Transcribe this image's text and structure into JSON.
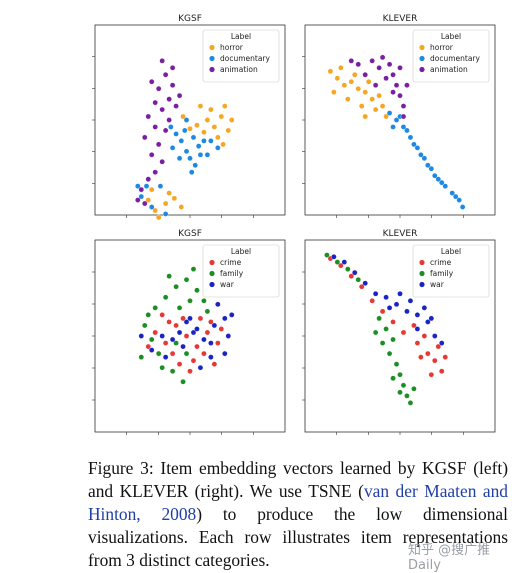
{
  "chart_data": [
    {
      "type": "scatter",
      "title": "KGSF",
      "legend_title": "Label",
      "legend_position": "top-right",
      "series": [
        {
          "name": "horror",
          "color": "#f5a623",
          "points": [
            [
              0.6,
              0.5
            ],
            [
              0.64,
              0.46
            ],
            [
              0.68,
              0.52
            ],
            [
              0.7,
              0.58
            ],
            [
              0.72,
              0.44
            ],
            [
              0.66,
              0.4
            ],
            [
              0.62,
              0.56
            ],
            [
              0.58,
              0.43
            ],
            [
              0.74,
              0.5
            ],
            [
              0.69,
              0.36
            ],
            [
              0.54,
              0.47
            ],
            [
              0.56,
              0.58
            ],
            [
              0.5,
              0.45
            ],
            [
              0.46,
              0.52
            ],
            [
              0.3,
              -0.02
            ],
            [
              0.28,
              0.1
            ],
            [
              0.26,
              0.04
            ],
            [
              0.36,
              0.02
            ],
            [
              0.38,
              0.08
            ],
            [
              0.45,
              0.0
            ],
            [
              0.32,
              -0.06
            ],
            [
              0.41,
              0.05
            ]
          ]
        },
        {
          "name": "documentary",
          "color": "#1e88e5",
          "points": [
            [
              0.45,
              0.38
            ],
            [
              0.48,
              0.32
            ],
            [
              0.52,
              0.4
            ],
            [
              0.55,
              0.35
            ],
            [
              0.5,
              0.28
            ],
            [
              0.42,
              0.42
            ],
            [
              0.58,
              0.38
            ],
            [
              0.47,
              0.44
            ],
            [
              0.53,
              0.24
            ],
            [
              0.4,
              0.34
            ],
            [
              0.56,
              0.3
            ],
            [
              0.44,
              0.28
            ],
            [
              0.6,
              0.3
            ],
            [
              0.62,
              0.38
            ],
            [
              0.22,
              0.06
            ],
            [
              0.25,
              0.12
            ],
            [
              0.28,
              0.0
            ],
            [
              0.33,
              0.12
            ],
            [
              0.36,
              -0.04
            ],
            [
              0.2,
              0.12
            ],
            [
              0.48,
              0.5
            ],
            [
              0.51,
              0.2
            ],
            [
              0.39,
              0.46
            ],
            [
              0.66,
              0.34
            ]
          ]
        },
        {
          "name": "animation",
          "color": "#7b1fa2",
          "points": [
            [
              0.28,
              0.72
            ],
            [
              0.32,
              0.68
            ],
            [
              0.36,
              0.76
            ],
            [
              0.4,
              0.7
            ],
            [
              0.3,
              0.6
            ],
            [
              0.34,
              0.56
            ],
            [
              0.38,
              0.62
            ],
            [
              0.42,
              0.58
            ],
            [
              0.3,
              0.46
            ],
            [
              0.26,
              0.52
            ],
            [
              0.36,
              0.44
            ],
            [
              0.32,
              0.36
            ],
            [
              0.28,
              0.3
            ],
            [
              0.24,
              0.4
            ],
            [
              0.4,
              0.8
            ],
            [
              0.34,
              0.84
            ],
            [
              0.44,
              0.64
            ],
            [
              0.38,
              0.5
            ],
            [
              0.22,
              0.1
            ],
            [
              0.26,
              0.16
            ],
            [
              0.24,
              0.02
            ],
            [
              0.3,
              0.2
            ],
            [
              0.34,
              0.26
            ],
            [
              0.2,
              0.04
            ]
          ]
        }
      ]
    },
    {
      "type": "scatter",
      "title": "KLEVER",
      "legend_title": "Label",
      "legend_position": "top-right",
      "series": [
        {
          "name": "horror",
          "color": "#f5a623",
          "points": [
            [
              0.1,
              0.78
            ],
            [
              0.14,
              0.74
            ],
            [
              0.18,
              0.7
            ],
            [
              0.22,
              0.72
            ],
            [
              0.26,
              0.68
            ],
            [
              0.3,
              0.66
            ],
            [
              0.34,
              0.62
            ],
            [
              0.38,
              0.64
            ],
            [
              0.2,
              0.62
            ],
            [
              0.28,
              0.58
            ],
            [
              0.36,
              0.56
            ],
            [
              0.24,
              0.76
            ],
            [
              0.32,
              0.72
            ],
            [
              0.4,
              0.58
            ],
            [
              0.16,
              0.8
            ],
            [
              0.12,
              0.66
            ],
            [
              0.42,
              0.52
            ],
            [
              0.3,
              0.52
            ]
          ]
        },
        {
          "name": "documentary",
          "color": "#1e88e5",
          "points": [
            [
              0.44,
              0.54
            ],
            [
              0.48,
              0.5
            ],
            [
              0.52,
              0.46
            ],
            [
              0.56,
              0.4
            ],
            [
              0.6,
              0.34
            ],
            [
              0.64,
              0.28
            ],
            [
              0.68,
              0.22
            ],
            [
              0.72,
              0.16
            ],
            [
              0.76,
              0.12
            ],
            [
              0.8,
              0.08
            ],
            [
              0.84,
              0.04
            ],
            [
              0.86,
              0.0
            ],
            [
              0.62,
              0.3
            ],
            [
              0.7,
              0.18
            ],
            [
              0.58,
              0.36
            ],
            [
              0.5,
              0.52
            ],
            [
              0.66,
              0.24
            ],
            [
              0.74,
              0.14
            ],
            [
              0.82,
              0.06
            ],
            [
              0.46,
              0.46
            ],
            [
              0.54,
              0.44
            ]
          ]
        },
        {
          "name": "animation",
          "color": "#7b1fa2",
          "points": [
            [
              0.4,
              0.86
            ],
            [
              0.44,
              0.82
            ],
            [
              0.46,
              0.76
            ],
            [
              0.48,
              0.7
            ],
            [
              0.5,
              0.64
            ],
            [
              0.52,
              0.58
            ],
            [
              0.42,
              0.74
            ],
            [
              0.38,
              0.8
            ],
            [
              0.5,
              0.8
            ],
            [
              0.46,
              0.66
            ],
            [
              0.36,
              0.7
            ],
            [
              0.3,
              0.76
            ],
            [
              0.26,
              0.82
            ],
            [
              0.22,
              0.84
            ],
            [
              0.54,
              0.7
            ],
            [
              0.52,
              0.52
            ],
            [
              0.34,
              0.84
            ]
          ]
        }
      ]
    },
    {
      "type": "scatter",
      "title": "KGSF",
      "legend_title": "Label",
      "legend_position": "top-right",
      "series": [
        {
          "name": "crime",
          "color": "#e53935",
          "points": [
            [
              0.3,
              0.52
            ],
            [
              0.36,
              0.46
            ],
            [
              0.42,
              0.56
            ],
            [
              0.48,
              0.5
            ],
            [
              0.54,
              0.44
            ],
            [
              0.6,
              0.52
            ],
            [
              0.4,
              0.4
            ],
            [
              0.52,
              0.36
            ],
            [
              0.58,
              0.4
            ],
            [
              0.66,
              0.46
            ],
            [
              0.46,
              0.6
            ],
            [
              0.34,
              0.62
            ],
            [
              0.62,
              0.58
            ],
            [
              0.5,
              0.3
            ],
            [
              0.44,
              0.34
            ],
            [
              0.56,
              0.6
            ],
            [
              0.38,
              0.58
            ],
            [
              0.68,
              0.54
            ],
            [
              0.26,
              0.44
            ],
            [
              0.64,
              0.34
            ]
          ]
        },
        {
          "name": "family",
          "color": "#1b8e24",
          "points": [
            [
              0.24,
              0.56
            ],
            [
              0.3,
              0.66
            ],
            [
              0.36,
              0.72
            ],
            [
              0.42,
              0.78
            ],
            [
              0.48,
              0.82
            ],
            [
              0.54,
              0.76
            ],
            [
              0.32,
              0.4
            ],
            [
              0.28,
              0.48
            ],
            [
              0.4,
              0.3
            ],
            [
              0.46,
              0.24
            ],
            [
              0.22,
              0.38
            ],
            [
              0.5,
              0.7
            ],
            [
              0.38,
              0.84
            ],
            [
              0.44,
              0.66
            ],
            [
              0.58,
              0.7
            ],
            [
              0.52,
              0.88
            ],
            [
              0.34,
              0.32
            ],
            [
              0.26,
              0.62
            ],
            [
              0.42,
              0.46
            ],
            [
              0.6,
              0.64
            ],
            [
              0.48,
              0.4
            ]
          ]
        },
        {
          "name": "war",
          "color": "#1a23c4",
          "points": [
            [
              0.22,
              0.5
            ],
            [
              0.28,
              0.42
            ],
            [
              0.34,
              0.5
            ],
            [
              0.4,
              0.48
            ],
            [
              0.46,
              0.44
            ],
            [
              0.52,
              0.52
            ],
            [
              0.58,
              0.48
            ],
            [
              0.64,
              0.56
            ],
            [
              0.7,
              0.6
            ],
            [
              0.66,
              0.68
            ],
            [
              0.6,
              0.76
            ],
            [
              0.72,
              0.5
            ],
            [
              0.56,
              0.32
            ],
            [
              0.62,
              0.38
            ],
            [
              0.5,
              0.6
            ],
            [
              0.44,
              0.52
            ],
            [
              0.7,
              0.4
            ],
            [
              0.36,
              0.38
            ],
            [
              0.74,
              0.62
            ],
            [
              0.54,
              0.54
            ],
            [
              0.62,
              0.46
            ],
            [
              0.48,
              0.58
            ]
          ]
        }
      ]
    },
    {
      "type": "scatter",
      "title": "KLEVER",
      "legend_title": "Label",
      "legend_position": "top-right",
      "series": [
        {
          "name": "crime",
          "color": "#e53935",
          "points": [
            [
              0.1,
              0.94
            ],
            [
              0.16,
              0.9
            ],
            [
              0.22,
              0.84
            ],
            [
              0.28,
              0.78
            ],
            [
              0.34,
              0.7
            ],
            [
              0.4,
              0.64
            ],
            [
              0.46,
              0.58
            ],
            [
              0.52,
              0.52
            ],
            [
              0.6,
              0.46
            ],
            [
              0.66,
              0.4
            ],
            [
              0.7,
              0.36
            ],
            [
              0.74,
              0.3
            ],
            [
              0.62,
              0.38
            ],
            [
              0.72,
              0.44
            ],
            [
              0.58,
              0.56
            ],
            [
              0.68,
              0.28
            ],
            [
              0.76,
              0.38
            ],
            [
              0.64,
              0.5
            ]
          ]
        },
        {
          "name": "family",
          "color": "#1b8e24",
          "points": [
            [
              0.08,
              0.96
            ],
            [
              0.14,
              0.92
            ],
            [
              0.2,
              0.88
            ],
            [
              0.26,
              0.82
            ],
            [
              0.38,
              0.6
            ],
            [
              0.42,
              0.54
            ],
            [
              0.46,
              0.48
            ],
            [
              0.44,
              0.4
            ],
            [
              0.48,
              0.34
            ],
            [
              0.5,
              0.28
            ],
            [
              0.52,
              0.22
            ],
            [
              0.54,
              0.16
            ],
            [
              0.56,
              0.12
            ],
            [
              0.5,
              0.18
            ],
            [
              0.46,
              0.26
            ],
            [
              0.4,
              0.46
            ],
            [
              0.58,
              0.2
            ],
            [
              0.36,
              0.52
            ]
          ]
        },
        {
          "name": "war",
          "color": "#1a23c4",
          "points": [
            [
              0.12,
              0.95
            ],
            [
              0.18,
              0.92
            ],
            [
              0.24,
              0.86
            ],
            [
              0.3,
              0.8
            ],
            [
              0.36,
              0.74
            ],
            [
              0.42,
              0.72
            ],
            [
              0.48,
              0.68
            ],
            [
              0.54,
              0.64
            ],
            [
              0.6,
              0.62
            ],
            [
              0.66,
              0.58
            ],
            [
              0.7,
              0.5
            ],
            [
              0.74,
              0.46
            ],
            [
              0.56,
              0.7
            ],
            [
              0.64,
              0.66
            ],
            [
              0.5,
              0.74
            ],
            [
              0.6,
              0.54
            ],
            [
              0.68,
              0.6
            ],
            [
              0.44,
              0.66
            ]
          ]
        }
      ]
    }
  ],
  "caption": {
    "text_before": "Figure 3:  Item embedding vectors learned by KGSF (left) and KLEVER (right).  We use TSNE (",
    "link": "van der Maaten and Hinton, 2008",
    "text_after": ") to produce the low dimensional visualizations.  Each row illustrates item representations from 3 distinct categories."
  },
  "watermark": "知乎 @搜广推Daily"
}
